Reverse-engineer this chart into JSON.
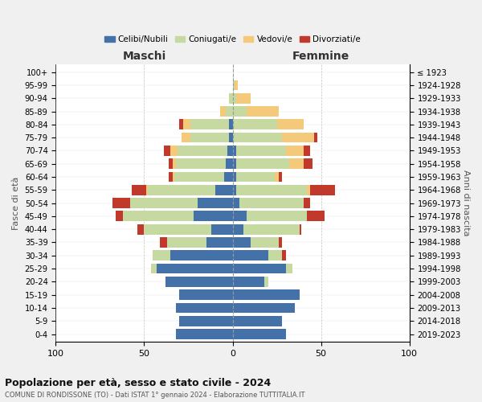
{
  "age_groups": [
    "0-4",
    "5-9",
    "10-14",
    "15-19",
    "20-24",
    "25-29",
    "30-34",
    "35-39",
    "40-44",
    "45-49",
    "50-54",
    "55-59",
    "60-64",
    "65-69",
    "70-74",
    "75-79",
    "80-84",
    "85-89",
    "90-94",
    "95-99",
    "100+"
  ],
  "birth_years": [
    "2019-2023",
    "2014-2018",
    "2009-2013",
    "2004-2008",
    "1999-2003",
    "1994-1998",
    "1989-1993",
    "1984-1988",
    "1979-1983",
    "1974-1978",
    "1969-1973",
    "1964-1968",
    "1959-1963",
    "1954-1958",
    "1949-1953",
    "1944-1948",
    "1939-1943",
    "1934-1938",
    "1929-1933",
    "1924-1928",
    "≤ 1923"
  ],
  "maschi": {
    "celibi": [
      32,
      30,
      32,
      30,
      38,
      43,
      35,
      15,
      12,
      22,
      20,
      10,
      5,
      4,
      3,
      2,
      2,
      0,
      0,
      0,
      0
    ],
    "coniugati": [
      0,
      0,
      0,
      0,
      0,
      3,
      10,
      22,
      38,
      40,
      38,
      38,
      28,
      28,
      28,
      22,
      22,
      4,
      2,
      0,
      0
    ],
    "vedovi": [
      0,
      0,
      0,
      0,
      0,
      0,
      0,
      0,
      0,
      0,
      0,
      1,
      1,
      2,
      4,
      5,
      4,
      3,
      0,
      0,
      0
    ],
    "divorziati": [
      0,
      0,
      0,
      0,
      0,
      0,
      0,
      4,
      4,
      4,
      10,
      8,
      2,
      2,
      4,
      0,
      2,
      0,
      0,
      0,
      0
    ]
  },
  "femmine": {
    "nubili": [
      30,
      28,
      35,
      38,
      18,
      30,
      20,
      10,
      6,
      8,
      4,
      2,
      2,
      2,
      2,
      0,
      0,
      0,
      0,
      0,
      0
    ],
    "coniugate": [
      0,
      0,
      0,
      0,
      2,
      4,
      8,
      16,
      32,
      34,
      36,
      40,
      22,
      30,
      28,
      28,
      25,
      8,
      2,
      1,
      0
    ],
    "vedove": [
      0,
      0,
      0,
      0,
      0,
      0,
      0,
      0,
      0,
      0,
      0,
      2,
      2,
      8,
      10,
      18,
      15,
      18,
      8,
      2,
      0
    ],
    "divorziate": [
      0,
      0,
      0,
      0,
      0,
      0,
      2,
      2,
      1,
      10,
      4,
      14,
      2,
      5,
      4,
      2,
      0,
      0,
      0,
      0,
      0
    ]
  },
  "colors": {
    "celibi": "#4472a8",
    "coniugati": "#c5d9a0",
    "vedovi": "#f5c97a",
    "divorziati": "#c0392b"
  },
  "xlim": 100,
  "title": "Popolazione per età, sesso e stato civile - 2024",
  "subtitle": "COMUNE DI RONDISSONE (TO) - Dati ISTAT 1° gennaio 2024 - Elaborazione TUTTITALIA.IT",
  "ylabel_left": "Fasce di età",
  "ylabel_right": "Anni di nascita",
  "xlabel_left": "Maschi",
  "xlabel_right": "Femmine",
  "bg_color": "#f0f0f0",
  "plot_bg": "#ffffff"
}
